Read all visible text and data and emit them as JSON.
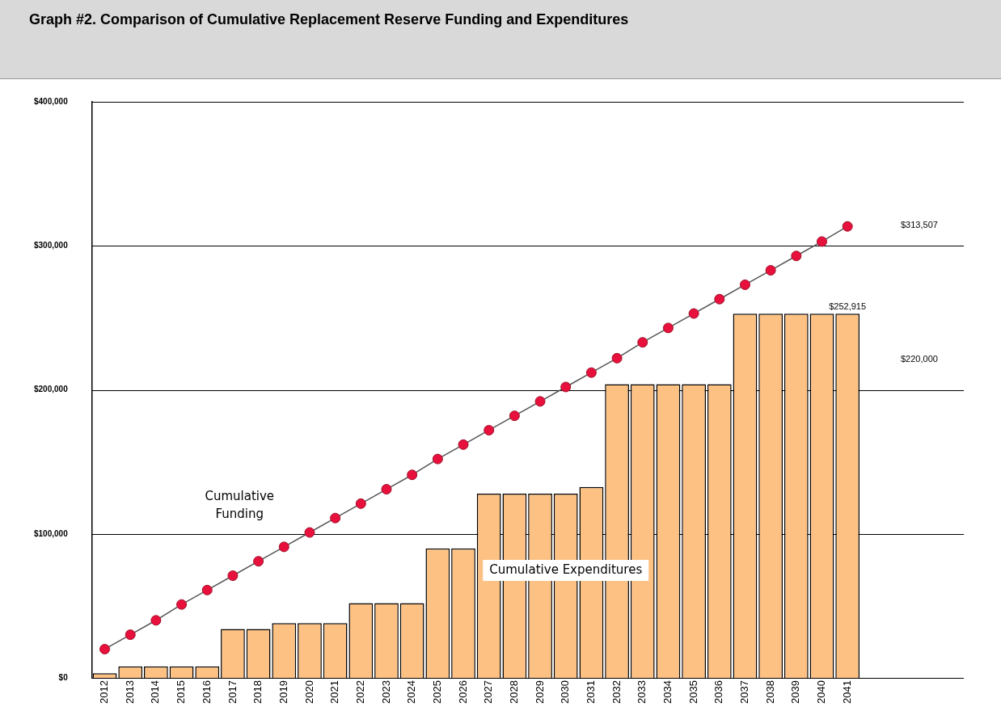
{
  "chart_data": {
    "type": "bar",
    "title": "Graph #2.  Comparison of Cumulative Replacement Reserve Funding and Expenditures",
    "categories": [
      "2012",
      "2013",
      "2014",
      "2015",
      "2016",
      "2017",
      "2018",
      "2019",
      "2020",
      "2021",
      "2022",
      "2023",
      "2024",
      "2025",
      "2026",
      "2027",
      "2028",
      "2029",
      "2030",
      "2031",
      "2032",
      "2033",
      "2034",
      "2035",
      "2036",
      "2037",
      "2038",
      "2039",
      "2040",
      "2041"
    ],
    "series": [
      {
        "name": "Cumulative Expenditures",
        "color": "#fdc184",
        "values": [
          3300,
          8000,
          8000,
          8000,
          8000,
          34000,
          34000,
          38000,
          38000,
          38000,
          52000,
          52000,
          52000,
          90000,
          90000,
          128000,
          128000,
          128000,
          128000,
          132500,
          204000,
          204000,
          204000,
          204000,
          204000,
          252915,
          252915,
          252915,
          252915,
          252915
        ]
      },
      {
        "name": "Cumulative Funding",
        "type": "line",
        "color": "#e8103c",
        "values": [
          20000,
          30000,
          40000,
          51000,
          61000,
          71000,
          81000,
          91000,
          101000,
          111000,
          121000,
          131000,
          141000,
          152000,
          162000,
          172000,
          182000,
          192000,
          202000,
          212000,
          222000,
          233000,
          243000,
          253000,
          263000,
          273000,
          283000,
          293000,
          303000,
          313507
        ]
      }
    ],
    "ylim": [
      0,
      400000
    ],
    "yticks": [
      {
        "value": 0,
        "label": "$0"
      },
      {
        "value": 100000,
        "label": "$100,000"
      },
      {
        "value": 200000,
        "label": "$200,000"
      },
      {
        "value": 300000,
        "label": "$300,000"
      },
      {
        "value": 400000,
        "label": "$400,000"
      }
    ],
    "grid": "y",
    "legend": false,
    "marker": "circle",
    "annotations": [
      "$313,507",
      {
        "text": "$252,915",
        "x": "2041",
        "y": 252915
      },
      "$220,000"
    ]
  }
}
